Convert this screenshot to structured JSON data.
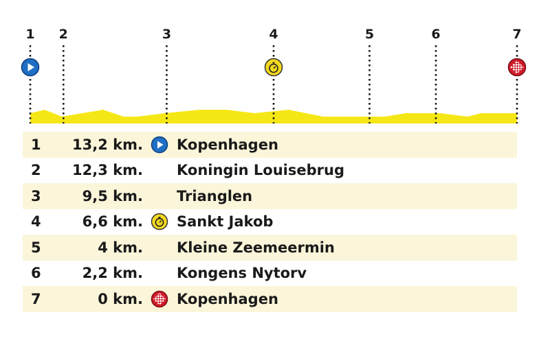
{
  "colors": {
    "route_fill": "#f5e716",
    "row_shade": "#fbf5da",
    "start_blue": "#1f6fc4",
    "sprint_yellow": "#f3d81f",
    "finish_red": "#d01c2a"
  },
  "markers": [
    {
      "label": "1",
      "km": 13.2,
      "icon": "start-icon"
    },
    {
      "label": "2",
      "km": 12.3,
      "icon": ""
    },
    {
      "label": "3",
      "km": 9.5,
      "icon": ""
    },
    {
      "label": "4",
      "km": 6.6,
      "icon": "stopwatch-icon"
    },
    {
      "label": "5",
      "km": 4.0,
      "icon": ""
    },
    {
      "label": "6",
      "km": 2.2,
      "icon": ""
    },
    {
      "label": "7",
      "km": 0.0,
      "icon": "finish-flag-icon"
    }
  ],
  "table": {
    "rows": [
      {
        "num": "1",
        "km": "13,2 km.",
        "icon": "start-icon",
        "name": "Kopenhagen"
      },
      {
        "num": "2",
        "km": "12,3 km.",
        "icon": "",
        "name": "Koningin Louisebrug"
      },
      {
        "num": "3",
        "km": "9,5 km.",
        "icon": "",
        "name": "Trianglen"
      },
      {
        "num": "4",
        "km": "6,6 km.",
        "icon": "stopwatch-icon",
        "name": "Sankt Jakob"
      },
      {
        "num": "5",
        "km": "4 km.",
        "icon": "",
        "name": "Kleine Zeemeermin"
      },
      {
        "num": "6",
        "km": "2,2 km.",
        "icon": "",
        "name": "Kongens Nytorv"
      },
      {
        "num": "7",
        "km": "0 km.",
        "icon": "finish-flag-icon",
        "name": "Kopenhagen"
      }
    ]
  }
}
